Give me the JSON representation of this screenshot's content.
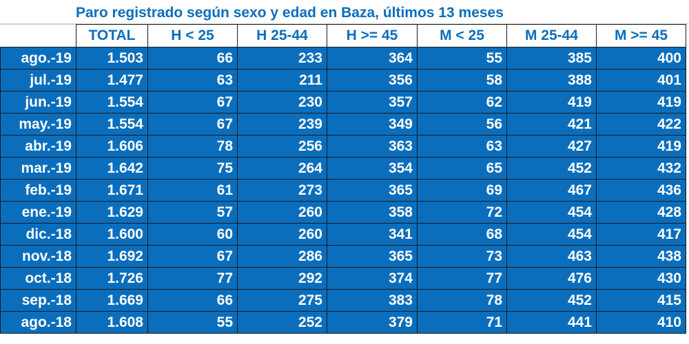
{
  "title": "Paro registrado según sexo y edad en Baza, últimos 13 meses",
  "colors": {
    "cell_background": "#0a6ebd",
    "header_text": "#0a6ebd",
    "cell_text": "#ffffff"
  },
  "columns": [
    "",
    "TOTAL",
    "H < 25",
    "H 25-44",
    "H >= 45",
    "M < 25",
    "M 25-44",
    "M >= 45"
  ],
  "rows": [
    [
      "ago.-19",
      "1.503",
      "66",
      "233",
      "364",
      "55",
      "385",
      "400"
    ],
    [
      "jul.-19",
      "1.477",
      "63",
      "211",
      "356",
      "58",
      "388",
      "401"
    ],
    [
      "jun.-19",
      "1.554",
      "67",
      "230",
      "357",
      "62",
      "419",
      "419"
    ],
    [
      "may.-19",
      "1.554",
      "67",
      "239",
      "349",
      "56",
      "421",
      "422"
    ],
    [
      "abr.-19",
      "1.606",
      "78",
      "256",
      "363",
      "63",
      "427",
      "419"
    ],
    [
      "mar.-19",
      "1.642",
      "75",
      "264",
      "354",
      "65",
      "452",
      "432"
    ],
    [
      "feb.-19",
      "1.671",
      "61",
      "273",
      "365",
      "69",
      "467",
      "436"
    ],
    [
      "ene.-19",
      "1.629",
      "57",
      "260",
      "358",
      "72",
      "454",
      "428"
    ],
    [
      "dic.-18",
      "1.600",
      "60",
      "260",
      "341",
      "68",
      "454",
      "417"
    ],
    [
      "nov.-18",
      "1.692",
      "67",
      "286",
      "365",
      "73",
      "463",
      "438"
    ],
    [
      "oct.-18",
      "1.726",
      "77",
      "292",
      "374",
      "77",
      "476",
      "430"
    ],
    [
      "sep.-18",
      "1.669",
      "66",
      "275",
      "383",
      "78",
      "452",
      "415"
    ],
    [
      "ago.-18",
      "1.608",
      "55",
      "252",
      "379",
      "71",
      "441",
      "410"
    ]
  ]
}
